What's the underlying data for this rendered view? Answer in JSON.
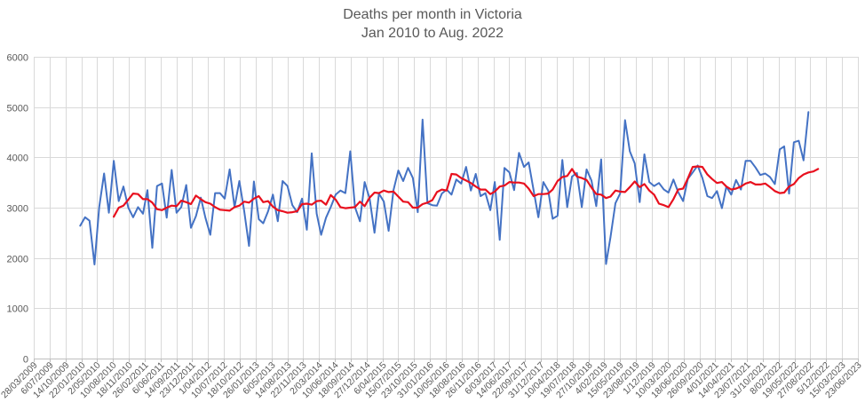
{
  "chart_data": {
    "type": "line",
    "title": [
      "Deaths per month in Victoria",
      "Jan 2010 to Aug. 2022"
    ],
    "xlabel": "",
    "ylabel": "",
    "ylim": [
      0,
      6000
    ],
    "yticks": [
      0,
      1000,
      2000,
      3000,
      4000,
      5000,
      6000
    ],
    "xlim": [
      "2009-03-28",
      "2023-06-23"
    ],
    "xticks": [
      "28/03/2009",
      "6/07/2009",
      "14/10/2009",
      "22/01/2010",
      "2/05/2010",
      "10/08/2010",
      "18/11/2010",
      "26/02/2011",
      "6/06/2011",
      "14/09/2011",
      "23/12/2011",
      "1/04/2012",
      "10/07/2012",
      "18/10/2012",
      "26/01/2013",
      "6/05/2013",
      "14/08/2013",
      "22/11/2013",
      "2/03/2014",
      "10/06/2014",
      "18/09/2014",
      "27/12/2014",
      "6/04/2015",
      "15/07/2015",
      "23/10/2015",
      "31/01/2016",
      "10/05/2016",
      "18/08/2016",
      "26/11/2016",
      "6/03/2017",
      "14/06/2017",
      "22/09/2017",
      "31/12/2017",
      "10/04/2018",
      "19/07/2018",
      "27/10/2018",
      "4/02/2019",
      "15/05/2019",
      "23/08/2019",
      "1/12/2019",
      "10/03/2020",
      "18/06/2020",
      "26/09/2020",
      "4/01/2021",
      "14/04/2021",
      "23/07/2021",
      "31/10/2021",
      "8/02/2022",
      "19/05/2022",
      "27/08/2022",
      "5/12/2022",
      "15/03/2023",
      "23/06/2023"
    ],
    "grid": "vertical and horizontal",
    "legend": "none",
    "x_start": "2010-01",
    "x_step": "1 month",
    "series": [
      {
        "color": "#4472C4",
        "values": [
          2640,
          2810,
          2740,
          1870,
          3010,
          3680,
          2900,
          3930,
          3130,
          3420,
          3000,
          2810,
          3010,
          2880,
          3350,
          2200,
          3430,
          3480,
          2800,
          3750,
          2900,
          3010,
          3450,
          2600,
          2830,
          3200,
          2800,
          2460,
          3290,
          3290,
          3180,
          3760,
          3010,
          3530,
          2930,
          2240,
          3520,
          2770,
          2690,
          2930,
          3260,
          2730,
          3530,
          3430,
          3050,
          2910,
          3180,
          2560,
          4080,
          2880,
          2460,
          2800,
          3010,
          3260,
          3340,
          3290,
          4120,
          3010,
          2730,
          3510,
          3180,
          2500,
          3280,
          3120,
          2540,
          3350,
          3740,
          3530,
          3790,
          3590,
          2910,
          4750,
          3090,
          3050,
          3040,
          3280,
          3360,
          3260,
          3560,
          3480,
          3810,
          3340,
          3670,
          3230,
          3290,
          2950,
          3510,
          2360,
          3790,
          3700,
          3350,
          4090,
          3810,
          3900,
          3340,
          2810,
          3510,
          3340,
          2780,
          2840,
          3950,
          3010,
          3620,
          3690,
          3010,
          3760,
          3540,
          3030,
          3960,
          1880,
          2410,
          3090,
          3280,
          4740,
          4120,
          3880,
          3110,
          4060,
          3510,
          3430,
          3490,
          3360,
          3300,
          3560,
          3310,
          3130,
          3570,
          3700,
          3840,
          3590,
          3230,
          3190,
          3330,
          2990,
          3420,
          3260,
          3550,
          3360,
          3930,
          3930,
          3800,
          3650,
          3680,
          3610,
          3470,
          4160,
          4220,
          3280,
          4300,
          4330,
          3940,
          4900
        ]
      },
      {
        "color": "#E8101E",
        "values": [
          null,
          null,
          null,
          null,
          null,
          null,
          null,
          2820,
          3000,
          3040,
          3160,
          3280,
          3270,
          3170,
          3170,
          3100,
          2970,
          2950,
          3000,
          3040,
          3030,
          3140,
          3110,
          3070,
          3240,
          3170,
          3110,
          3080,
          3010,
          2960,
          2950,
          2940,
          3010,
          3040,
          3120,
          3100,
          3180,
          3230,
          3110,
          3130,
          3020,
          2950,
          2930,
          2900,
          2910,
          2930,
          3070,
          3080,
          3060,
          3130,
          3140,
          3060,
          3250,
          3160,
          3010,
          2990,
          3000,
          3010,
          3120,
          3030,
          3200,
          3300,
          3290,
          3340,
          3310,
          3320,
          3220,
          3120,
          3110,
          3000,
          3000,
          3070,
          3100,
          3150,
          3310,
          3360,
          3340,
          3670,
          3660,
          3590,
          3540,
          3490,
          3420,
          3360,
          3360,
          3270,
          3320,
          3420,
          3440,
          3510,
          3500,
          3500,
          3480,
          3380,
          3230,
          3270,
          3270,
          3280,
          3360,
          3530,
          3610,
          3630,
          3770,
          3620,
          3590,
          3550,
          3400,
          3270,
          3260,
          3190,
          3220,
          3340,
          3320,
          3310,
          3410,
          3520,
          3410,
          3470,
          3340,
          3260,
          3080,
          3050,
          3010,
          3170,
          3360,
          3380,
          3580,
          3810,
          3820,
          3810,
          3660,
          3570,
          3490,
          3510,
          3420,
          3360,
          3380,
          3420,
          3480,
          3510,
          3460,
          3460,
          3480,
          3410,
          3330,
          3290,
          3300,
          3420,
          3470,
          3590,
          3660,
          3700,
          3720,
          3770
        ]
      }
    ]
  }
}
